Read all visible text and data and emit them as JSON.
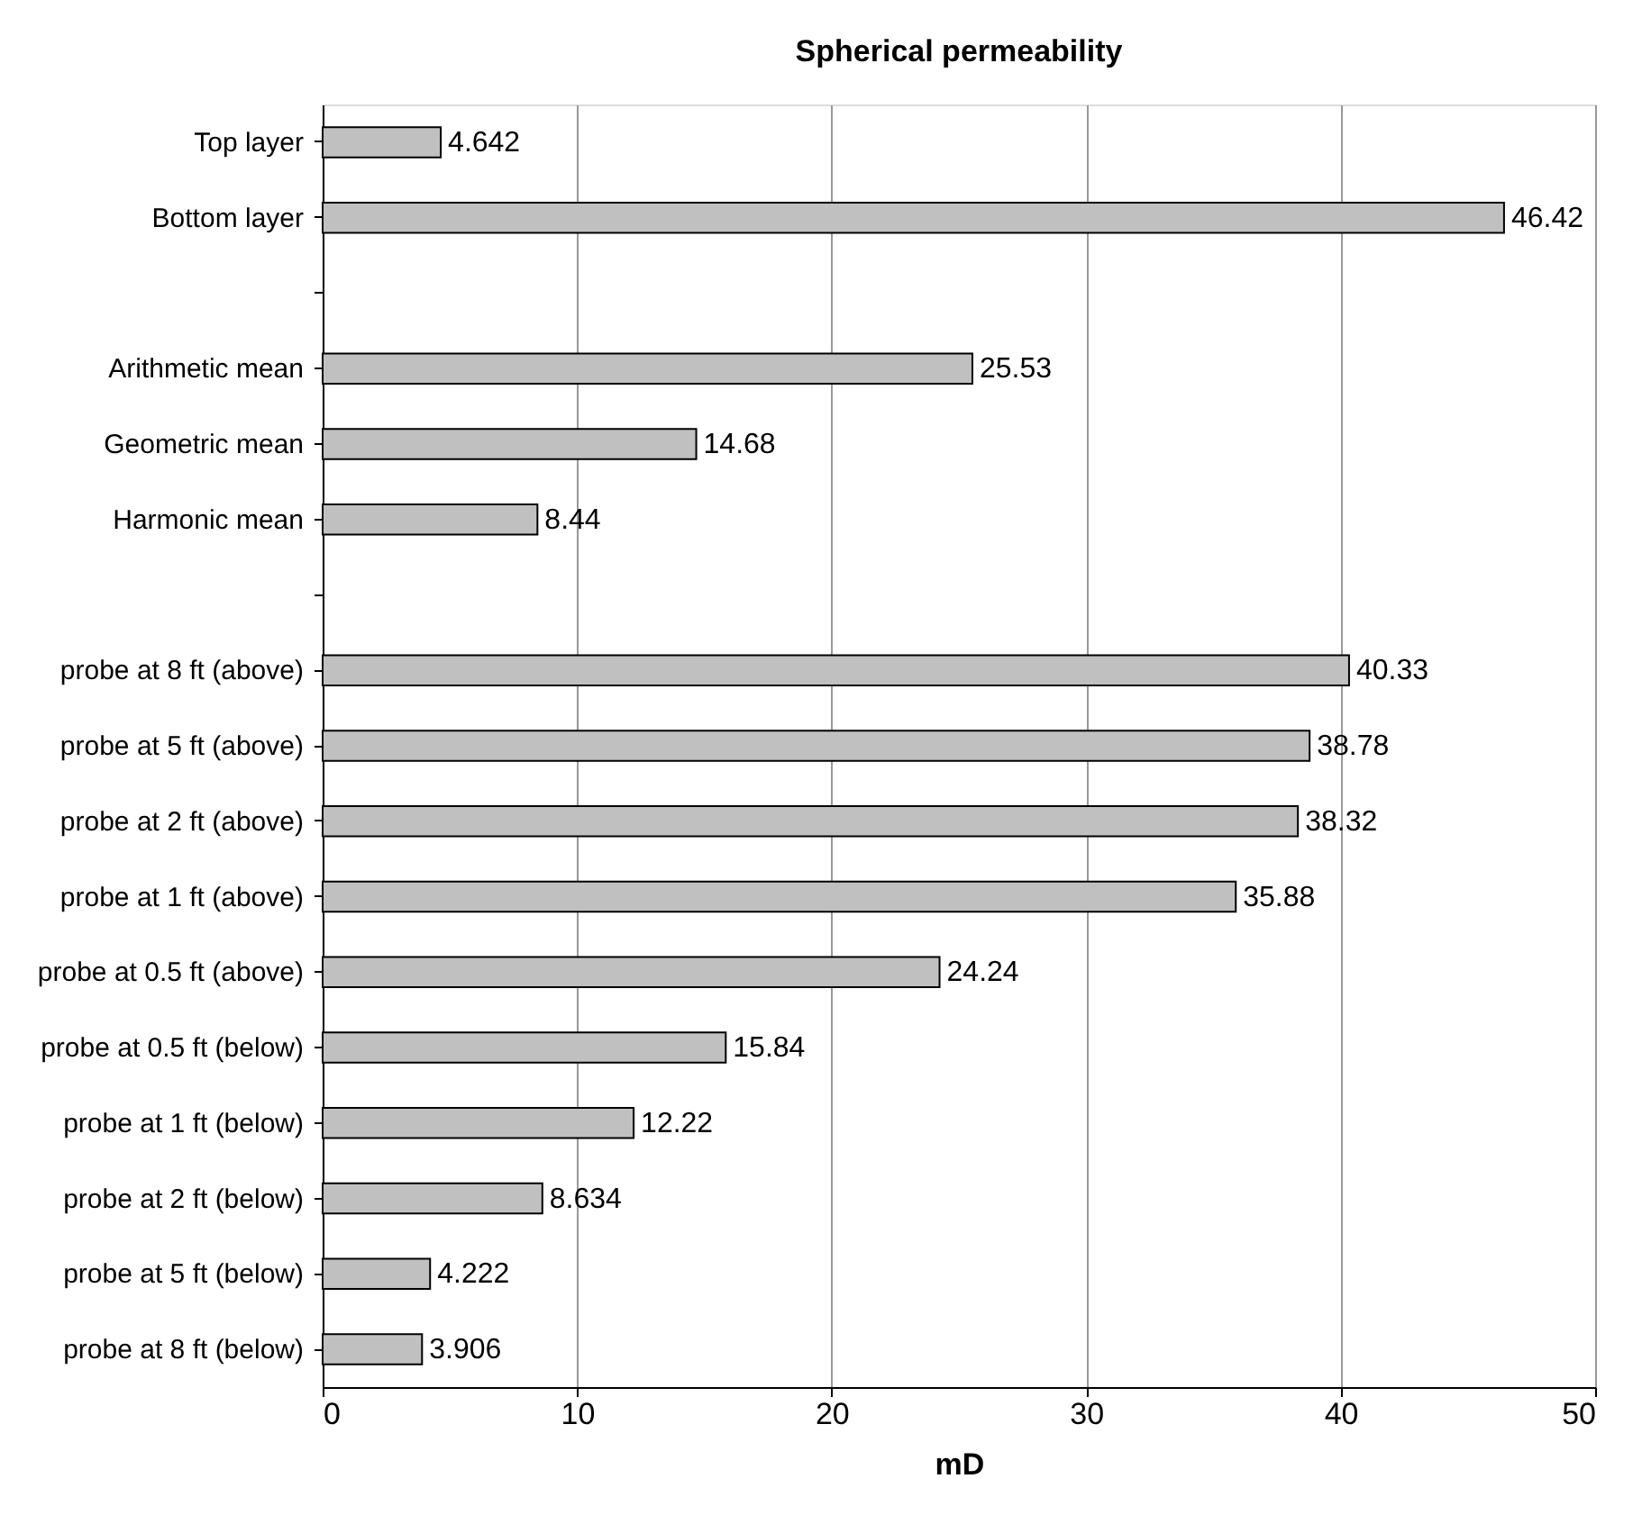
{
  "chart_data": {
    "type": "bar",
    "orientation": "horizontal",
    "title": "Spherical permeability",
    "xlabel": "mD",
    "categories": [
      "Top layer",
      "Bottom layer",
      null,
      "Arithmetic mean",
      "Geometric mean",
      "Harmonic mean",
      null,
      "probe at 8 ft (above)",
      "probe at 5 ft (above)",
      "probe at 2 ft (above)",
      "probe at 1 ft (above)",
      "probe at 0.5 ft (above)",
      "probe at 0.5 ft (below)",
      "probe at 1 ft (below)",
      "probe at 2 ft (below)",
      "probe at 5 ft (below)",
      "probe at 8 ft (below)"
    ],
    "values": [
      4.642,
      46.42,
      null,
      25.53,
      14.68,
      8.44,
      null,
      40.33,
      38.78,
      38.32,
      35.88,
      24.24,
      15.84,
      12.22,
      8.634,
      4.222,
      3.906
    ],
    "color": "#c0c0c0",
    "xlim": [
      0,
      50
    ],
    "xticks": [
      0,
      10,
      20,
      30,
      40,
      50
    ],
    "grid": "x",
    "data_labels": true
  }
}
